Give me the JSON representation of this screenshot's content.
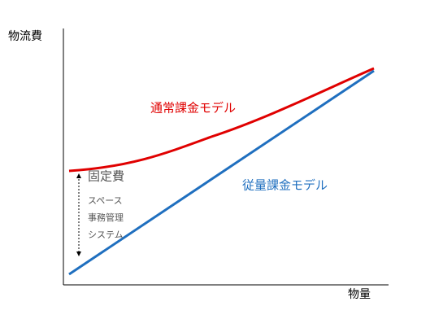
{
  "axes": {
    "y_label": "物流費",
    "x_label": "物量"
  },
  "models": [
    {
      "label": "通常課金モデル"
    },
    {
      "label": "従量課金モデル"
    }
  ],
  "fixed_cost": {
    "title": "固定費",
    "items": [
      "スペース",
      "事務管理",
      "システム"
    ]
  }
}
